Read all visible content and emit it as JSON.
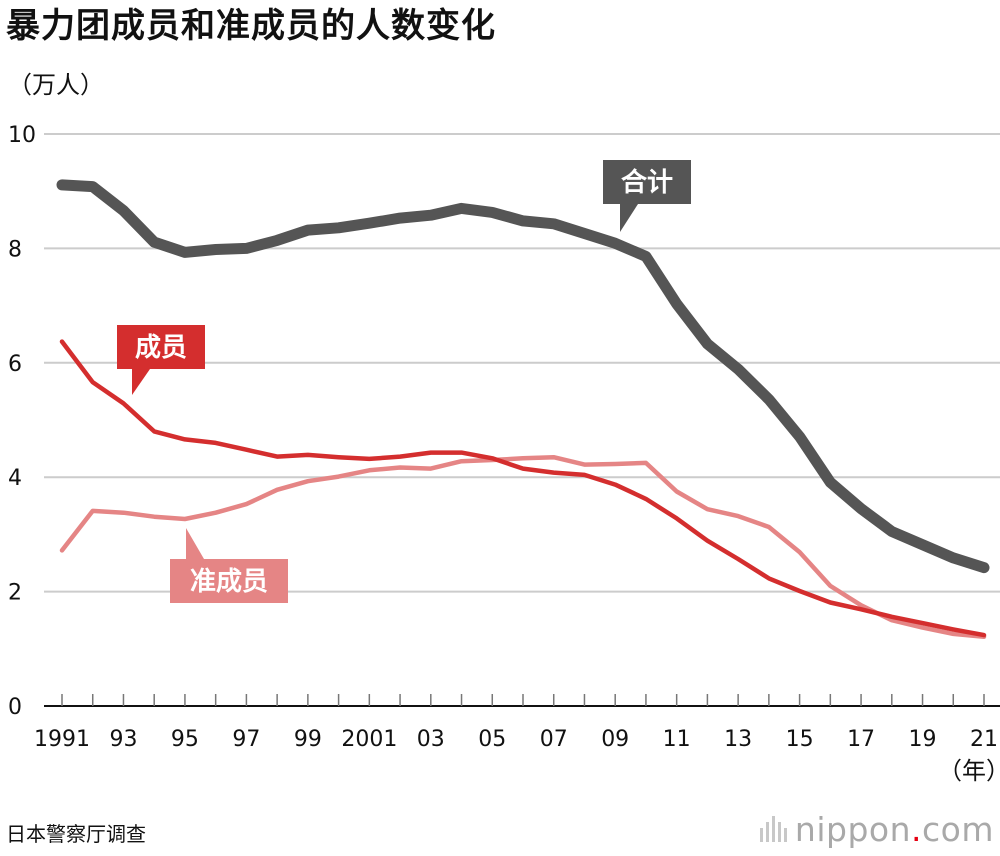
{
  "header": {
    "title": "暴力团成员和准成员的人数变化"
  },
  "footer": {
    "source": "日本警察厅调查",
    "brand_name": "nippon",
    "brand_dot": ".",
    "brand_tld": "com"
  },
  "colors": {
    "total": "#555555",
    "members": "#d42e2e",
    "associates": "#e58585",
    "grid": "#cccccc",
    "brand_dot": "#e60012"
  },
  "chart_data": {
    "type": "line",
    "title": "暴力团成员和准成员的人数变化",
    "ylabel": "（万人）",
    "xlabel": "（年）",
    "ylim": [
      0,
      10
    ],
    "yticks": [
      0,
      2,
      4,
      6,
      8,
      10
    ],
    "ytick_labels": [
      "0",
      "2",
      "4",
      "6",
      "8",
      "10"
    ],
    "grid": true,
    "x": [
      1991,
      1992,
      1993,
      1994,
      1995,
      1996,
      1997,
      1998,
      1999,
      2000,
      2001,
      2002,
      2003,
      2004,
      2005,
      2006,
      2007,
      2008,
      2009,
      2010,
      2011,
      2012,
      2013,
      2014,
      2015,
      2016,
      2017,
      2018,
      2019,
      2020,
      2021
    ],
    "xtick_years": [
      1991,
      1993,
      1995,
      1997,
      1999,
      2001,
      2003,
      2005,
      2007,
      2009,
      2011,
      2013,
      2015,
      2017,
      2019,
      2021
    ],
    "xtick_labels": [
      "1991",
      "93",
      "95",
      "97",
      "99",
      "2001",
      "03",
      "05",
      "07",
      "09",
      "11",
      "13",
      "15",
      "17",
      "19",
      "21"
    ],
    "series": [
      {
        "name": "合计",
        "key": "total",
        "values": [
          9.11,
          9.08,
          8.66,
          8.11,
          7.93,
          7.98,
          8.0,
          8.14,
          8.32,
          8.36,
          8.44,
          8.53,
          8.58,
          8.7,
          8.63,
          8.48,
          8.43,
          8.26,
          8.09,
          7.86,
          7.03,
          6.33,
          5.89,
          5.36,
          4.71,
          3.91,
          3.45,
          3.05,
          2.82,
          2.59,
          2.42
        ]
      },
      {
        "name": "成员",
        "key": "members",
        "values": [
          6.37,
          5.66,
          5.29,
          4.8,
          4.66,
          4.6,
          4.48,
          4.36,
          4.39,
          4.35,
          4.32,
          4.36,
          4.43,
          4.43,
          4.33,
          4.15,
          4.08,
          4.04,
          3.87,
          3.62,
          3.28,
          2.89,
          2.57,
          2.23,
          2.01,
          1.81,
          1.69,
          1.56,
          1.45,
          1.34,
          1.24
        ]
      },
      {
        "name": "准成员",
        "key": "associates",
        "values": [
          2.72,
          3.41,
          3.38,
          3.31,
          3.27,
          3.38,
          3.53,
          3.78,
          3.93,
          4.01,
          4.12,
          4.17,
          4.15,
          4.28,
          4.3,
          4.33,
          4.35,
          4.22,
          4.23,
          4.25,
          3.75,
          3.44,
          3.32,
          3.13,
          2.69,
          2.1,
          1.76,
          1.5,
          1.37,
          1.26,
          1.21
        ]
      }
    ]
  }
}
